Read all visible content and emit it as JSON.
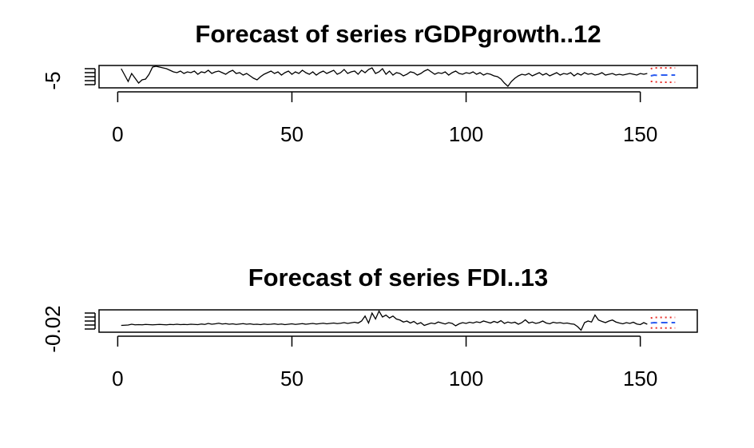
{
  "chart_data": [
    {
      "type": "line",
      "title": "Forecast of series rGDPgrowth..12",
      "x": [
        1,
        2,
        3,
        4,
        5,
        6,
        7,
        8,
        9,
        10,
        11,
        12,
        13,
        14,
        15,
        16,
        17,
        18,
        19,
        20,
        21,
        22,
        23,
        24,
        25,
        26,
        27,
        28,
        29,
        30,
        31,
        32,
        33,
        34,
        35,
        36,
        37,
        38,
        39,
        40,
        41,
        42,
        43,
        44,
        45,
        46,
        47,
        48,
        49,
        50,
        51,
        52,
        53,
        54,
        55,
        56,
        57,
        58,
        59,
        60,
        61,
        62,
        63,
        64,
        65,
        66,
        67,
        68,
        69,
        70,
        71,
        72,
        73,
        74,
        75,
        76,
        77,
        78,
        79,
        80,
        81,
        82,
        83,
        84,
        85,
        86,
        87,
        88,
        89,
        90,
        91,
        92,
        93,
        94,
        95,
        96,
        97,
        98,
        99,
        100,
        101,
        102,
        103,
        104,
        105,
        106,
        107,
        108,
        109,
        110,
        111,
        112,
        113,
        114,
        115,
        116,
        117,
        118,
        119,
        120,
        121,
        122,
        123,
        124,
        125,
        126,
        127,
        128,
        129,
        130,
        131,
        132,
        133,
        134,
        135,
        136,
        137,
        138,
        139,
        140,
        141,
        142,
        143,
        144,
        145,
        146,
        147,
        148,
        149,
        150,
        151,
        152
      ],
      "series": [
        {
          "color": "#000000",
          "dash": "solid",
          "values": [
            10,
            2,
            -6,
            4,
            -2,
            -8,
            -4,
            -3,
            3,
            12,
            13,
            12,
            11,
            10,
            8,
            6,
            5,
            7,
            4,
            6,
            5,
            7,
            3,
            6,
            5,
            8,
            4,
            6,
            7,
            5,
            3,
            6,
            8,
            4,
            5,
            2,
            4,
            1,
            -2,
            -4,
            0,
            3,
            5,
            7,
            4,
            6,
            2,
            5,
            7,
            3,
            6,
            4,
            8,
            5,
            3,
            6,
            2,
            5,
            7,
            4,
            6,
            8,
            3,
            5,
            9,
            4,
            6,
            7,
            3,
            8,
            5,
            9,
            11,
            4,
            6,
            10,
            3,
            7,
            2,
            5,
            4,
            1,
            3,
            6,
            5,
            2,
            4,
            7,
            9,
            6,
            3,
            5,
            4,
            6,
            2,
            5,
            7,
            4,
            3,
            5,
            4,
            6,
            3,
            5,
            2,
            4,
            3,
            1,
            0,
            -3,
            -8,
            -12,
            -6,
            -2,
            1,
            3,
            2,
            4,
            1,
            3,
            5,
            2,
            4,
            1,
            3,
            5,
            2,
            4,
            3,
            5,
            1,
            4,
            2,
            5,
            3,
            4,
            2,
            3,
            5,
            2,
            3,
            4,
            2,
            3,
            2,
            3,
            4,
            3,
            2,
            4,
            3,
            4
          ]
        },
        {
          "color": "#2b5cf0",
          "dash": "dashed",
          "x": [
            153,
            154,
            155,
            156,
            157,
            158,
            159,
            160
          ],
          "values": [
            1,
            2,
            1.5,
            2,
            2,
            2,
            2,
            2
          ]
        },
        {
          "color": "#e8302a",
          "dash": "dotted",
          "x": [
            153,
            154,
            155,
            156,
            157,
            158,
            159,
            160
          ],
          "values": [
            10,
            11,
            11,
            11,
            11,
            11,
            11,
            11
          ]
        },
        {
          "color": "#e8302a",
          "dash": "dotted",
          "x": [
            153,
            154,
            155,
            156,
            157,
            158,
            159,
            160
          ],
          "values": [
            -6,
            -6,
            -7,
            -7,
            -7,
            -7,
            -7,
            -7
          ]
        }
      ],
      "xlim": [
        -5.36,
        166.36
      ],
      "xticks": [
        0,
        50,
        100,
        150
      ],
      "ylim": [
        -14,
        14
      ],
      "yticks": [
        {
          "value": -10,
          "label": null
        },
        -5,
        {
          "value": 0,
          "label": null
        },
        {
          "value": 5,
          "label": null
        },
        {
          "value": 10,
          "label": null
        }
      ]
    },
    {
      "type": "line",
      "title": "Forecast of series FDI..13",
      "x": [
        1,
        2,
        3,
        4,
        5,
        6,
        7,
        8,
        9,
        10,
        11,
        12,
        13,
        14,
        15,
        16,
        17,
        18,
        19,
        20,
        21,
        22,
        23,
        24,
        25,
        26,
        27,
        28,
        29,
        30,
        31,
        32,
        33,
        34,
        35,
        36,
        37,
        38,
        39,
        40,
        41,
        42,
        43,
        44,
        45,
        46,
        47,
        48,
        49,
        50,
        51,
        52,
        53,
        54,
        55,
        56,
        57,
        58,
        59,
        60,
        61,
        62,
        63,
        64,
        65,
        66,
        67,
        68,
        69,
        70,
        71,
        72,
        73,
        74,
        75,
        76,
        77,
        78,
        79,
        80,
        81,
        82,
        83,
        84,
        85,
        86,
        87,
        88,
        89,
        90,
        91,
        92,
        93,
        94,
        95,
        96,
        97,
        98,
        99,
        100,
        101,
        102,
        103,
        104,
        105,
        106,
        107,
        108,
        109,
        110,
        111,
        112,
        113,
        114,
        115,
        116,
        117,
        118,
        119,
        120,
        121,
        122,
        123,
        124,
        125,
        126,
        127,
        128,
        129,
        130,
        131,
        132,
        133,
        134,
        135,
        136,
        137,
        138,
        139,
        140,
        141,
        142,
        143,
        144,
        145,
        146,
        147,
        148,
        149,
        150,
        151,
        152
      ],
      "series": [
        {
          "color": "#000000",
          "dash": "solid",
          "values": [
            -0.002,
            -0.001,
            0,
            0.004,
            0.001,
            0.002,
            0.001,
            0.003,
            0.002,
            0.001,
            0.002,
            0.003,
            0.002,
            0.001,
            0.003,
            0.002,
            0.004,
            0.002,
            0.003,
            0.002,
            0.004,
            0.003,
            0.002,
            0.005,
            0.003,
            0.008,
            0.004,
            0.006,
            0.009,
            0.005,
            0.007,
            0.004,
            0.006,
            0.003,
            0.005,
            0.007,
            0.004,
            0.006,
            0.003,
            0.004,
            0.002,
            0.005,
            0.003,
            0.004,
            0.006,
            0.003,
            0.005,
            0.002,
            0.004,
            0.006,
            0.003,
            0.005,
            0.007,
            0.004,
            0.006,
            0.008,
            0.005,
            0.007,
            0.009,
            0.006,
            0.008,
            0.01,
            0.007,
            0.009,
            0.012,
            0.008,
            0.011,
            0.014,
            0.01,
            0.02,
            0.045,
            0.01,
            0.06,
            0.03,
            0.07,
            0.04,
            0.05,
            0.035,
            0.045,
            0.03,
            0.025,
            0.015,
            0.02,
            0.01,
            0.018,
            0.005,
            0.012,
            -0.002,
            0.004,
            0.01,
            0.006,
            0.015,
            0.01,
            0.005,
            0.012,
            0.008,
            -0.004,
            0.006,
            0.012,
            0.008,
            0.014,
            0.01,
            0.016,
            0.012,
            0.02,
            0.015,
            0.01,
            0.018,
            0.012,
            0.022,
            0.008,
            0.015,
            0.01,
            0.014,
            0.004,
            0.012,
            0.026,
            0.01,
            0.015,
            0.008,
            0.012,
            0.02,
            0.01,
            0.006,
            0.014,
            0.01,
            0.012,
            0.008,
            0.01,
            0.006,
            0.004,
            -0.008,
            -0.026,
            0.012,
            0.02,
            0.015,
            0.05,
            0.025,
            0.018,
            0.012,
            0.02,
            0.025,
            0.015,
            0.01,
            0.006,
            0.012,
            0.008,
            0.014,
            0.005,
            0.002,
            0.012,
            0.004
          ]
        },
        {
          "color": "#2b5cf0",
          "dash": "dashed",
          "x": [
            153,
            154,
            155,
            156,
            157,
            158,
            159,
            160
          ],
          "values": [
            0.01,
            0.012,
            0.011,
            0.012,
            0.012,
            0.012,
            0.012,
            0.012
          ]
        },
        {
          "color": "#e8302a",
          "dash": "dotted",
          "x": [
            153,
            154,
            155,
            156,
            157,
            158,
            159,
            160
          ],
          "values": [
            0.035,
            0.038,
            0.038,
            0.038,
            0.038,
            0.038,
            0.038,
            0.038
          ]
        },
        {
          "color": "#e8302a",
          "dash": "dotted",
          "x": [
            153,
            154,
            155,
            156,
            157,
            158,
            159,
            160
          ],
          "values": [
            -0.015,
            -0.014,
            -0.015,
            -0.015,
            -0.015,
            -0.015,
            -0.015,
            -0.015
          ]
        }
      ],
      "xlim": [
        -5.36,
        166.36
      ],
      "xticks": [
        0,
        50,
        100,
        150
      ],
      "ylim": [
        -0.036,
        0.076
      ],
      "yticks": [
        -0.02,
        {
          "value": 0,
          "label": null
        },
        {
          "value": 0.02,
          "label": null
        },
        {
          "value": 0.04,
          "label": null
        },
        {
          "value": 0.06,
          "label": null
        }
      ]
    }
  ]
}
